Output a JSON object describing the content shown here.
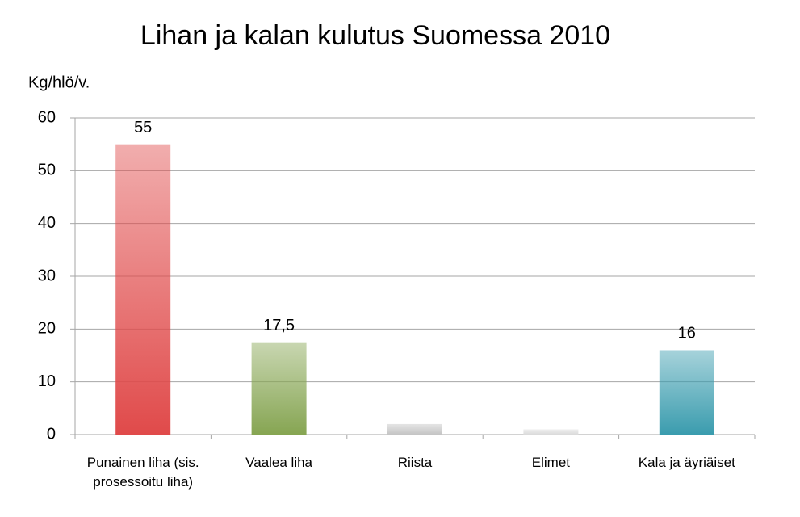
{
  "chart_data": {
    "type": "bar",
    "title": "Lihan ja kalan kulutus Suomessa 2010",
    "y_label": "Kg/hlö/v.",
    "categories": [
      "Punainen liha (sis. prosessoitu liha)",
      "Vaalea liha",
      "Riista",
      "Elimet",
      "Kala ja äyriäiset"
    ],
    "values": [
      55,
      17.5,
      2,
      1,
      16
    ],
    "value_labels": [
      "55",
      "17,5",
      null,
      null,
      "16"
    ],
    "colors": [
      "#e04a4a",
      "#86a552",
      "#c4c4c4",
      "#dadada",
      "#3a9cae"
    ],
    "ylim": [
      0,
      60
    ],
    "yticks": [
      0,
      10,
      20,
      30,
      40,
      50,
      60
    ],
    "grid": true
  }
}
